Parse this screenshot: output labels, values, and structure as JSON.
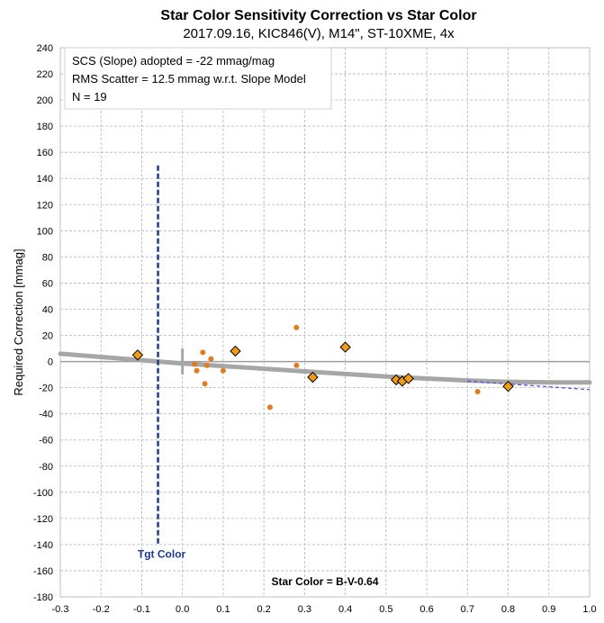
{
  "chart_data": {
    "type": "scatter",
    "title": "Star Color Sensitivity Correction vs Star Color",
    "subtitle": "2017.09.16, KIC846(V), M14\", ST-10XME, 4x",
    "xlabel": "Star Color = B-V-0.64",
    "ylabel": "Required Correction [mmag]",
    "xlim": [
      -0.3,
      1.0
    ],
    "ylim": [
      -180,
      240
    ],
    "x_ticks": [
      -0.3,
      -0.2,
      -0.1,
      0.0,
      0.1,
      0.2,
      0.3,
      0.4,
      0.5,
      0.6,
      0.7,
      0.8,
      0.9,
      1.0
    ],
    "x_tick_labels": [
      "-0.3",
      "-0.2",
      "-0.1",
      "0.0",
      "0.1",
      "0.2",
      "0.3",
      "0.4",
      "0.5",
      "0.6",
      "0.7",
      "0.8",
      "0.9",
      "1.0"
    ],
    "y_ticks": [
      -180,
      -160,
      -140,
      -120,
      -100,
      -80,
      -60,
      -40,
      -20,
      0,
      20,
      40,
      60,
      80,
      100,
      120,
      140,
      160,
      180,
      200,
      220,
      240
    ],
    "grid": true,
    "info_box": {
      "lines": [
        "SCS (Slope) adopted  =  -22 mmag/mag",
        "RMS Scatter = 12.5 mmag w.r.t. Slope Model",
        "N = 19"
      ]
    },
    "series": [
      {
        "marker": "diamond",
        "color": "#f39c12",
        "points": [
          [
            -0.11,
            5
          ],
          [
            0.13,
            8
          ],
          [
            0.32,
            -12
          ],
          [
            0.4,
            11
          ],
          [
            0.525,
            -14
          ],
          [
            0.54,
            -15
          ],
          [
            0.555,
            -13
          ],
          [
            0.8,
            -19
          ]
        ]
      },
      {
        "marker": "dot",
        "color": "#e07b1f",
        "points": [
          [
            0.03,
            -2
          ],
          [
            0.035,
            -7
          ],
          [
            0.05,
            7
          ],
          [
            0.055,
            -17
          ],
          [
            0.06,
            -3
          ],
          [
            0.07,
            2
          ],
          [
            0.1,
            -7
          ],
          [
            0.215,
            -35
          ],
          [
            0.28,
            26
          ],
          [
            0.28,
            -3
          ],
          [
            0.725,
            -23
          ]
        ]
      }
    ],
    "fit_curve": {
      "color": "#a6a6a6",
      "points": [
        [
          -0.3,
          6
        ],
        [
          -0.2,
          3.5
        ],
        [
          -0.1,
          1
        ],
        [
          0.0,
          -1.5
        ],
        [
          0.1,
          -3.5
        ],
        [
          0.2,
          -5.5
        ],
        [
          0.3,
          -7.5
        ],
        [
          0.4,
          -9.5
        ],
        [
          0.5,
          -11.5
        ],
        [
          0.6,
          -13
        ],
        [
          0.7,
          -14.5
        ],
        [
          0.8,
          -15.5
        ],
        [
          0.9,
          -16
        ],
        [
          1.0,
          -16
        ]
      ]
    },
    "slope_line": {
      "color": "#4a4ae0",
      "points": [
        [
          0.7,
          -15
        ],
        [
          1.0,
          -21.5
        ]
      ]
    },
    "target_color": {
      "x": -0.06,
      "y_range": [
        -140,
        150
      ],
      "label": "Tgt Color",
      "color": "#1f3a93"
    },
    "zero_marker": {
      "x": 0.0,
      "y_range": [
        -10,
        10
      ]
    }
  }
}
